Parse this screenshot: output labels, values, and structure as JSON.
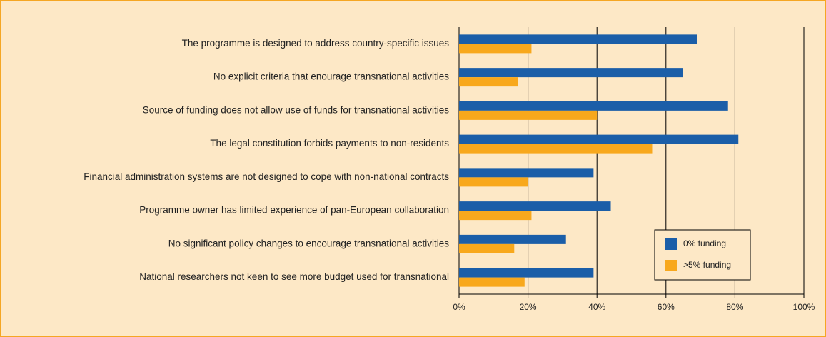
{
  "chart_data": {
    "type": "hbar",
    "categories": [
      "The programme is designed to address country-specific issues",
      "No explicit criteria that enourage transnational activities",
      "Source of funding does not allow use of funds for transnational activities",
      "The legal constitution forbids payments to non-residents",
      "Financial administration systems are not designed to cope with non-national contracts",
      "Programme owner has limited experience of pan-European collaboration",
      "No significant policy changes to encourage transnational activities",
      "National researchers not keen to see more budget used for transnational"
    ],
    "series": [
      {
        "name": "0% funding",
        "color": "#1b5ea8",
        "values": [
          69,
          65,
          78,
          81,
          39,
          44,
          31,
          39
        ]
      },
      {
        "name": ">5% funding",
        "color": "#f8a81c",
        "values": [
          21,
          17,
          40,
          56,
          20,
          21,
          16,
          19
        ]
      }
    ],
    "xlim": [
      0,
      100
    ],
    "xticks": [
      {
        "value": 0,
        "label": "0%"
      },
      {
        "value": 20,
        "label": "20%"
      },
      {
        "value": 40,
        "label": "40%"
      },
      {
        "value": 60,
        "label": "60%"
      },
      {
        "value": 80,
        "label": "80%"
      },
      {
        "value": 100,
        "label": "100%"
      }
    ],
    "grid": true,
    "legend": "lower right"
  }
}
